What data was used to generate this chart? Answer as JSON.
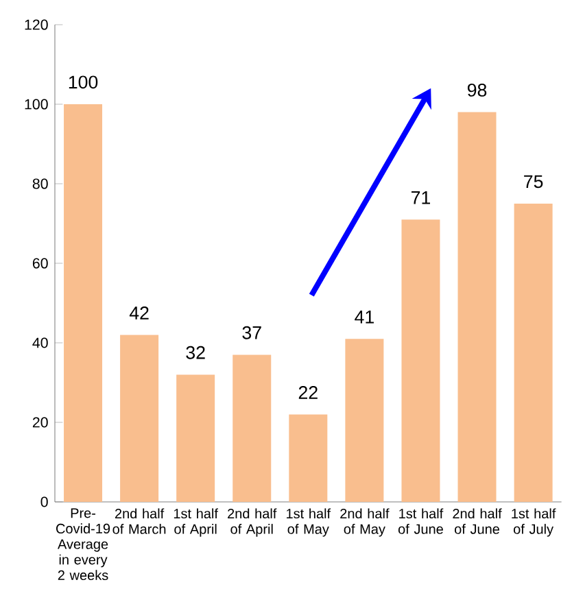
{
  "chart_data": {
    "type": "bar",
    "categories": [
      "Pre-Covid-19 Average in every 2 weeks",
      "2nd half of March",
      "1st half of April",
      "2nd half of April",
      "1st half of May",
      "2nd half of May",
      "1st half of June",
      "2nd half of June",
      "1st half of July"
    ],
    "values": [
      100,
      42,
      32,
      37,
      22,
      41,
      71,
      98,
      75
    ],
    "color": "#f9be8e",
    "ylim": [
      0,
      120
    ],
    "yticks": [
      0,
      20,
      40,
      60,
      80,
      100,
      120
    ],
    "data_labels": true,
    "grid": false
  }
}
